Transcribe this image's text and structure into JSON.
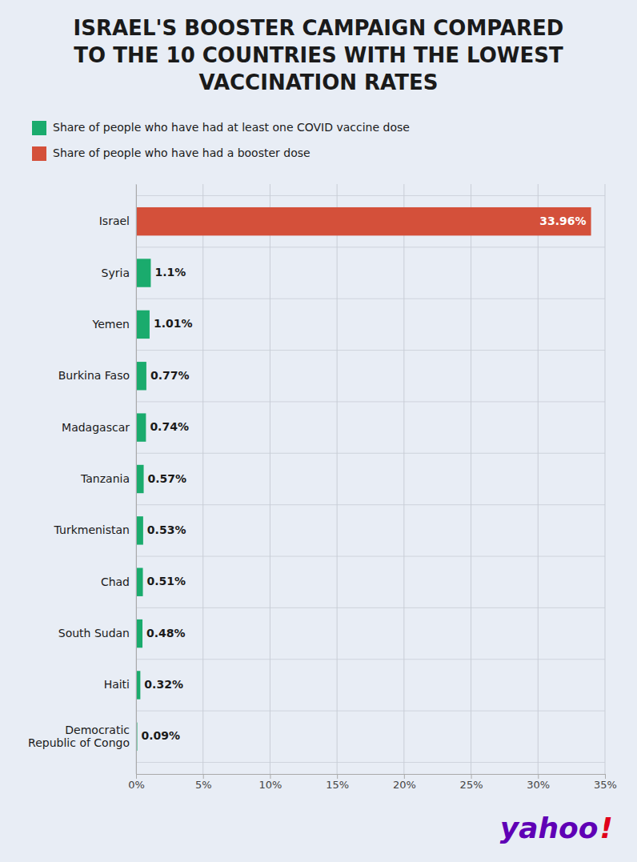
{
  "chart_data": {
    "type": "bar",
    "orientation": "horizontal",
    "title": "ISRAEL'S BOOSTER CAMPAIGN COMPARED\nTO THE 10 COUNTRIES WITH THE LOWEST\nVACCINATION RATES",
    "categories": [
      "Israel",
      "Syria",
      "Yemen",
      "Burkina Faso",
      "Madagascar",
      "Tanzania",
      "Turkmenistan",
      "Chad",
      "South Sudan",
      "Haiti",
      "Democratic\nRepublic of Congo"
    ],
    "series": [
      {
        "name": "Share of people who have had at least one COVID vaccine dose",
        "color": "#1aab6d",
        "values": [
          null,
          1.1,
          1.01,
          0.77,
          0.74,
          0.57,
          0.53,
          0.51,
          0.48,
          0.32,
          0.09
        ],
        "value_labels": [
          null,
          "1.1%",
          "1.01%",
          "0.77%",
          "0.74%",
          "0.57%",
          "0.53%",
          "0.51%",
          "0.48%",
          "0.32%",
          "0.09%"
        ]
      },
      {
        "name": "Share of people who have had a booster dose",
        "color": "#d4503a",
        "values": [
          33.96,
          null,
          null,
          null,
          null,
          null,
          null,
          null,
          null,
          null,
          null
        ],
        "value_labels": [
          "33.96%",
          null,
          null,
          null,
          null,
          null,
          null,
          null,
          null,
          null,
          null
        ]
      }
    ],
    "xlim": [
      0,
      35
    ],
    "xticks": [
      {
        "value": 0,
        "label": "0%"
      },
      {
        "value": 5,
        "label": "5%"
      },
      {
        "value": 10,
        "label": "10%"
      },
      {
        "value": 15,
        "label": "15%"
      },
      {
        "value": 20,
        "label": "20%"
      },
      {
        "value": 25,
        "label": "25%"
      },
      {
        "value": 30,
        "label": "30%"
      },
      {
        "value": 35,
        "label": "35%"
      }
    ],
    "grid": true,
    "legend": "upper left",
    "data_labels": true,
    "annotations": [
      {
        "text": "yahoo",
        "color": "#5f00b5"
      },
      {
        "text": "!",
        "color": "#e0001a"
      }
    ]
  }
}
